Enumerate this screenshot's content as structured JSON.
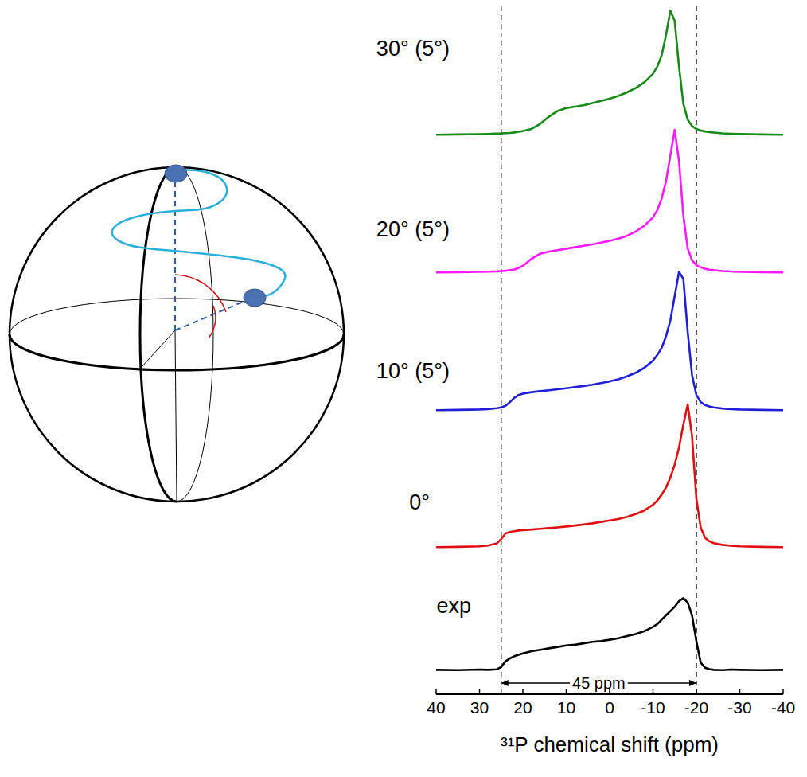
{
  "chart_data": {
    "type": "line",
    "x_label": "³¹P chemical shift (ppm)",
    "x": [
      40,
      35,
      30,
      28,
      26,
      25,
      24,
      23,
      22,
      21,
      20,
      18,
      16,
      14,
      12,
      10,
      8,
      6,
      4,
      2,
      0,
      -2,
      -4,
      -6,
      -8,
      -10,
      -11,
      -12,
      -13,
      -14,
      -15,
      -16,
      -17,
      -18,
      -19,
      -20,
      -21,
      -22,
      -23,
      -24,
      -26,
      -28,
      -30,
      -35,
      -40
    ],
    "xlim": [
      40,
      -40
    ],
    "xticks": [
      40,
      30,
      20,
      10,
      0,
      -10,
      -20,
      -30,
      -40
    ],
    "ylim": [
      0,
      1
    ],
    "tick_labels": "x",
    "grid": false,
    "stacked": false,
    "series": [
      {
        "name": "30° (5°)",
        "color": "#178a17",
        "values": [
          0.004,
          0.006,
          0.008,
          0.01,
          0.012,
          0.013,
          0.015,
          0.017,
          0.02,
          0.025,
          0.03,
          0.045,
          0.08,
          0.13,
          0.17,
          0.19,
          0.2,
          0.21,
          0.225,
          0.24,
          0.255,
          0.275,
          0.3,
          0.33,
          0.37,
          0.43,
          0.48,
          0.56,
          0.7,
          0.87,
          0.8,
          0.48,
          0.22,
          0.11,
          0.065,
          0.045,
          0.034,
          0.027,
          0.022,
          0.019,
          0.014,
          0.011,
          0.009,
          0.006,
          0.004
        ]
      },
      {
        "name": "20° (5°)",
        "color": "#ff1aff",
        "values": [
          0.004,
          0.006,
          0.008,
          0.01,
          0.012,
          0.014,
          0.016,
          0.02,
          0.025,
          0.035,
          0.05,
          0.1,
          0.135,
          0.15,
          0.16,
          0.17,
          0.18,
          0.19,
          0.2,
          0.212,
          0.225,
          0.24,
          0.26,
          0.29,
          0.33,
          0.39,
          0.44,
          0.52,
          0.64,
          0.82,
          1.0,
          0.78,
          0.4,
          0.17,
          0.09,
          0.055,
          0.04,
          0.03,
          0.024,
          0.02,
          0.014,
          0.011,
          0.009,
          0.006,
          0.004
        ]
      },
      {
        "name": "10° (5°)",
        "color": "#1f1fd6",
        "values": [
          0.004,
          0.006,
          0.009,
          0.012,
          0.018,
          0.024,
          0.035,
          0.06,
          0.09,
          0.11,
          0.12,
          0.13,
          0.137,
          0.143,
          0.15,
          0.157,
          0.165,
          0.173,
          0.182,
          0.193,
          0.205,
          0.22,
          0.24,
          0.265,
          0.3,
          0.35,
          0.39,
          0.44,
          0.52,
          0.63,
          0.8,
          0.97,
          0.92,
          0.55,
          0.25,
          0.11,
          0.06,
          0.04,
          0.03,
          0.024,
          0.016,
          0.012,
          0.009,
          0.006,
          0.004
        ]
      },
      {
        "name": "0°",
        "color": "#e01010",
        "values": [
          0.004,
          0.006,
          0.01,
          0.015,
          0.03,
          0.06,
          0.1,
          0.11,
          0.115,
          0.12,
          0.122,
          0.127,
          0.132,
          0.137,
          0.142,
          0.148,
          0.155,
          0.162,
          0.17,
          0.18,
          0.19,
          0.2,
          0.215,
          0.235,
          0.26,
          0.3,
          0.33,
          0.37,
          0.42,
          0.49,
          0.58,
          0.7,
          0.86,
          1.0,
          0.78,
          0.34,
          0.14,
          0.07,
          0.045,
          0.032,
          0.02,
          0.014,
          0.01,
          0.006,
          0.004
        ]
      },
      {
        "name": "exp",
        "color": "#000000",
        "values": [
          0.02,
          0.018,
          0.022,
          0.02,
          0.024,
          0.04,
          0.08,
          0.1,
          0.115,
          0.125,
          0.135,
          0.15,
          0.16,
          0.17,
          0.18,
          0.19,
          0.195,
          0.205,
          0.215,
          0.22,
          0.23,
          0.24,
          0.255,
          0.27,
          0.29,
          0.32,
          0.34,
          0.37,
          0.4,
          0.43,
          0.46,
          0.5,
          0.52,
          0.49,
          0.4,
          0.22,
          0.07,
          0.035,
          0.025,
          0.02,
          0.018,
          0.022,
          0.02,
          0.018,
          0.02
        ]
      }
    ],
    "annotations": [
      {
        "text": "45 ppm",
        "x_from": 25,
        "x_to": -20,
        "line_style": "dashed"
      }
    ]
  }
}
